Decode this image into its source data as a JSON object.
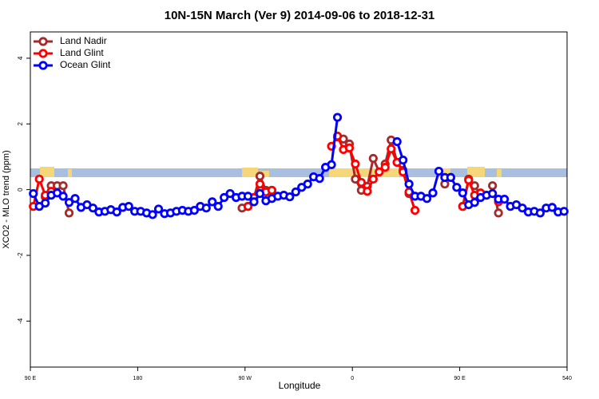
{
  "chart_data": {
    "type": "line",
    "title": "10N-15N March (Ver 9)   2014-09-06 to 2018-12-31",
    "x_label": "Longitude",
    "y_label": "XCO2 - MLO trend (ppm)",
    "legend": "top-left",
    "x": [
      92.5,
      97.5,
      102.5,
      107.5,
      112.5,
      117.5,
      122.5,
      127.5,
      132.5,
      137.5,
      142.5,
      147.5,
      152.5,
      157.5,
      162.5,
      167.5,
      172.5,
      177.5,
      182.5,
      187.5,
      192.5,
      197.5,
      202.5,
      207.5,
      212.5,
      217.5,
      222.5,
      227.5,
      232.5,
      237.5,
      242.5,
      247.5,
      252.5,
      257.5,
      262.5,
      267.5,
      272.5,
      277.5,
      282.5,
      287.5,
      292.5,
      297.5,
      302.5,
      307.5,
      312.5,
      317.5,
      322.5,
      327.5,
      332.5,
      337.5,
      342.5,
      347.5,
      352.5,
      357.5,
      362.5,
      367.5,
      372.5,
      377.5,
      382.5,
      387.5,
      392.5,
      397.5,
      402.5,
      407.5,
      412.5,
      417.5,
      422.5,
      427.5,
      432.5,
      437.5,
      442.5,
      447.5,
      452.5,
      457.5,
      462.5,
      467.5,
      472.5,
      477.5,
      482.5,
      487.5,
      492.5,
      497.5,
      502.5,
      507.5,
      512.5,
      517.5,
      522.5,
      527.5,
      532.5,
      537.5
    ],
    "series": [
      {
        "name": "Land Nadir",
        "color": "#a52a2a",
        "values": [
          null,
          null,
          -0.22,
          0.12,
          0.12,
          0.12,
          -0.71,
          null,
          null,
          null,
          null,
          null,
          null,
          null,
          null,
          null,
          null,
          null,
          null,
          null,
          null,
          null,
          null,
          null,
          null,
          null,
          null,
          null,
          null,
          null,
          null,
          null,
          null,
          null,
          null,
          -0.56,
          -0.51,
          -0.24,
          0.41,
          -0.02,
          -0.02,
          null,
          null,
          null,
          null,
          null,
          null,
          null,
          null,
          null,
          null,
          1.6,
          1.54,
          1.39,
          0.32,
          -0.02,
          0.1,
          0.95,
          0.54,
          0.78,
          1.51,
          0.83,
          0.59,
          -0.12,
          null,
          null,
          null,
          null,
          null,
          0.17,
          0.37,
          null,
          -0.51,
          0.32,
          0.12,
          -0.17,
          null,
          0.12,
          -0.71,
          null,
          null,
          null,
          null,
          null,
          null,
          null,
          null,
          null,
          null,
          null
        ]
      },
      {
        "name": "Land Glint",
        "color": "#ff0000",
        "values": [
          -0.51,
          0.32,
          -0.17,
          -0.05,
          null,
          null,
          null,
          null,
          null,
          null,
          null,
          null,
          null,
          null,
          null,
          null,
          null,
          null,
          null,
          null,
          null,
          null,
          null,
          null,
          null,
          null,
          null,
          null,
          null,
          null,
          null,
          null,
          null,
          null,
          null,
          null,
          -0.51,
          -0.24,
          0.17,
          -0.07,
          -0.02,
          null,
          null,
          null,
          null,
          null,
          null,
          null,
          null,
          null,
          1.32,
          1.63,
          1.22,
          1.27,
          0.78,
          0.22,
          -0.05,
          0.32,
          0.54,
          0.68,
          1.24,
          0.83,
          0.54,
          -0.07,
          -0.63,
          null,
          null,
          null,
          null,
          null,
          null,
          null,
          -0.51,
          0.29,
          -0.17,
          -0.1,
          null,
          null,
          -0.37,
          null,
          null,
          null,
          null,
          null,
          null,
          null,
          null,
          null,
          null,
          null
        ]
      },
      {
        "name": "Ocean Glint",
        "color": "#0000ff",
        "values": [
          -0.12,
          -0.51,
          -0.41,
          -0.17,
          -0.1,
          -0.2,
          -0.39,
          -0.27,
          -0.54,
          -0.46,
          -0.56,
          -0.68,
          -0.66,
          -0.61,
          -0.68,
          -0.54,
          -0.51,
          -0.66,
          -0.66,
          -0.71,
          -0.76,
          -0.59,
          -0.73,
          -0.71,
          -0.66,
          -0.63,
          -0.66,
          -0.63,
          -0.51,
          -0.56,
          -0.37,
          -0.51,
          -0.24,
          -0.12,
          -0.24,
          -0.2,
          -0.2,
          -0.37,
          -0.12,
          -0.34,
          -0.27,
          -0.2,
          -0.17,
          -0.22,
          -0.07,
          0.07,
          0.17,
          0.39,
          0.34,
          0.68,
          0.76,
          2.2,
          null,
          null,
          null,
          null,
          null,
          null,
          null,
          null,
          null,
          1.46,
          0.9,
          0.17,
          -0.2,
          -0.2,
          -0.27,
          -0.1,
          0.56,
          0.37,
          0.37,
          0.07,
          -0.1,
          -0.46,
          -0.39,
          -0.24,
          -0.17,
          -0.12,
          -0.29,
          -0.29,
          -0.51,
          -0.46,
          -0.56,
          -0.68,
          -0.66,
          -0.71,
          -0.56,
          -0.54,
          -0.68,
          -0.66
        ]
      }
    ],
    "xlim": [
      90,
      540
    ],
    "xticks": [
      {
        "value": 90,
        "label": "90 E"
      },
      180,
      {
        "value": 270,
        "label": "90 W"
      },
      {
        "value": 360,
        "label": "0"
      },
      {
        "value": 450,
        "label": "90 E"
      },
      540
    ],
    "ylim": [
      -5.4,
      4.8
    ],
    "yticks": [
      -4,
      -2,
      0,
      2,
      4
    ]
  }
}
